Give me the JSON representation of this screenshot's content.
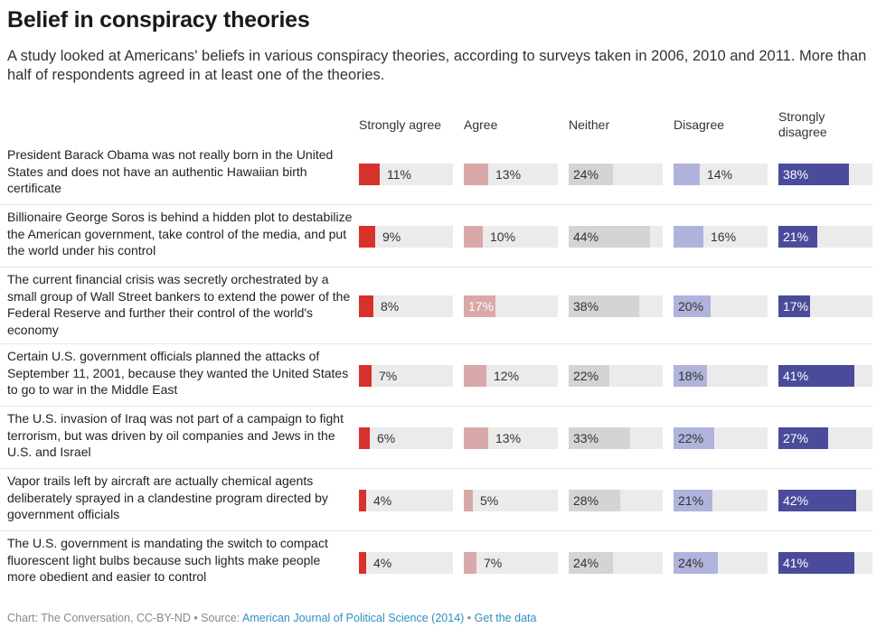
{
  "header": {
    "title": "Belief in conspiracy theories",
    "subtitle": "A study looked at Americans' beliefs in various conspiracy theories, according to surveys taken in 2006, 2010 and 2011. More than half of respondents agreed in at least one of the theories."
  },
  "colors": {
    "strongly_agree": "#d7312c",
    "agree": "#d8a9a8",
    "neither": "#d4d4d4",
    "disagree": "#b0b3dc",
    "strongly_disagree": "#4a4c9b",
    "track": "#ebebeb"
  },
  "chart_data": {
    "type": "table",
    "columns": [
      "Strongly agree",
      "Agree",
      "Neither",
      "Disagree",
      "Strongly disagree"
    ],
    "unit": "%",
    "rows": [
      {
        "label": "President Barack Obama was not really born in the United States and does not have an authentic Hawaiian birth certificate",
        "values": [
          11,
          13,
          24,
          14,
          38
        ]
      },
      {
        "label": "Billionaire George Soros is behind a hidden plot to destabilize the American government, take control of the media, and put the world under his control",
        "values": [
          9,
          10,
          44,
          16,
          21
        ]
      },
      {
        "label": "The current financial crisis was secretly orchestrated by a small group of Wall Street bankers to extend the power of the Federal Reserve and further their control of the world's economy",
        "values": [
          8,
          17,
          38,
          20,
          17
        ]
      },
      {
        "label": "Certain U.S. government officials planned the attacks of September 11, 2001, because they wanted the United States to go to war in the Middle East",
        "values": [
          7,
          12,
          22,
          18,
          41
        ]
      },
      {
        "label": "The U.S. invasion of Iraq was not part of a campaign to fight terrorism, but was driven by oil companies and Jews in the U.S. and Israel",
        "values": [
          6,
          13,
          33,
          22,
          27
        ]
      },
      {
        "label": "Vapor trails left by aircraft are actually chemical agents deliberately sprayed in a clandestine program directed by government officials",
        "values": [
          4,
          5,
          28,
          21,
          42
        ]
      },
      {
        "label": "The U.S. government is mandating the switch to compact fluorescent light bulbs because such lights make people more obedient and easier to control",
        "values": [
          4,
          7,
          24,
          24,
          41
        ]
      }
    ]
  },
  "footer": {
    "prefix": "Chart: The Conversation, CC-BY-ND • Source: ",
    "source_link": "American Journal of Political Science (2014)",
    "separator": " • ",
    "data_link": "Get the data"
  }
}
